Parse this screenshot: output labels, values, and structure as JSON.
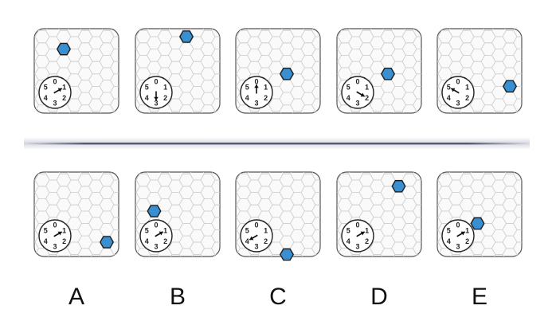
{
  "dial_numbers": [
    "0",
    "1",
    "2",
    "3",
    "4",
    "5"
  ],
  "colors": {
    "marker": "#3a8fd0",
    "outline": "#1a1a1a",
    "grid": "#d0d0d0",
    "divider": "#4a4a66"
  },
  "sequence": [
    {
      "dial": 1,
      "hex": [
        2,
        1
      ]
    },
    {
      "dial": 3,
      "hex": [
        4,
        0
      ]
    },
    {
      "dial": 0,
      "hex": [
        4,
        3
      ]
    },
    {
      "dial": 2,
      "hex": [
        4,
        3
      ]
    },
    {
      "dial": 5,
      "hex": [
        6,
        4
      ]
    }
  ],
  "options": [
    {
      "label": "A",
      "dial": 1,
      "hex": [
        6,
        5
      ]
    },
    {
      "label": "B",
      "dial": 1,
      "hex": [
        1,
        2
      ]
    },
    {
      "label": "C",
      "dial": 4,
      "hex": [
        4,
        6
      ]
    },
    {
      "label": "D",
      "dial": 1,
      "hex": [
        5,
        0
      ]
    },
    {
      "label": "E",
      "dial": 1,
      "hex": [
        3,
        3
      ]
    }
  ]
}
